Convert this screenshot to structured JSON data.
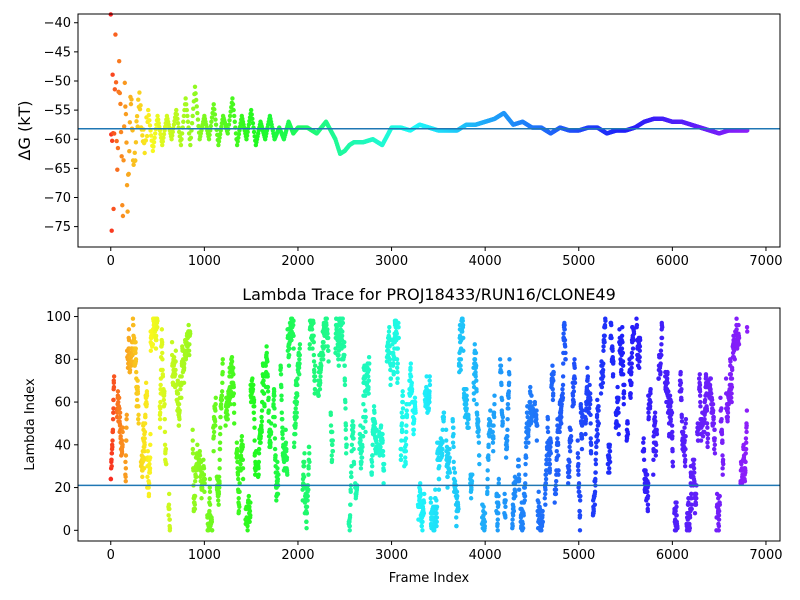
{
  "chart_data": [
    {
      "type": "scatter",
      "title": "",
      "xlabel": "",
      "ylabel": "ΔG (kT)",
      "xlim": [
        -350,
        7150
      ],
      "ylim": [
        -78.5,
        -38.5
      ],
      "xticks": [
        0,
        1000,
        2000,
        3000,
        4000,
        5000,
        6000,
        7000
      ],
      "yticks": [
        -75,
        -70,
        -65,
        -60,
        -55,
        -50,
        -45,
        -40
      ],
      "reference_line": -58.2,
      "reference_line_color": "#1f77b4",
      "colormap": "rainbow (red at early frames → violet at late frames)",
      "series": [
        {
          "x": [
            0,
            10,
            20,
            30,
            50,
            70,
            90,
            110,
            130,
            150,
            180,
            210,
            250,
            300,
            350,
            400,
            450,
            500,
            550,
            600,
            650,
            700,
            750,
            800,
            850,
            900,
            950,
            1000,
            1050,
            1100,
            1150,
            1200,
            1250,
            1300,
            1350,
            1400,
            1450,
            1500,
            1550,
            1600,
            1650,
            1700,
            1750,
            1800,
            1850,
            1900,
            1950,
            2000,
            2100,
            2200,
            2300,
            2400,
            2450,
            2500,
            2550,
            2600,
            2700,
            2800,
            2900,
            3000,
            3100,
            3200,
            3300,
            3400,
            3500,
            3600,
            3700,
            3800,
            3900,
            4000,
            4100,
            4200,
            4300,
            4400,
            4500,
            4600,
            4700,
            4800,
            4900,
            5000,
            5100,
            5200,
            5300,
            5400,
            5500,
            5600,
            5700,
            5800,
            5900,
            6000,
            6100,
            6200,
            6300,
            6400,
            6500,
            6600,
            6700,
            6800
          ],
          "values": [
            -39.5,
            -76.5,
            -50,
            -70,
            -44,
            -67,
            -45,
            -61,
            -73,
            -49,
            -72,
            -52,
            -66,
            -52,
            -61,
            -55,
            -62,
            -56,
            -61,
            -56,
            -60,
            -55,
            -61,
            -53,
            -61,
            -51,
            -60,
            -56,
            -60,
            -54,
            -61,
            -56,
            -59,
            -53,
            -61,
            -56,
            -60,
            -55,
            -61,
            -57,
            -60,
            -56,
            -60,
            -58,
            -60,
            -57,
            -59,
            -58,
            -58,
            -59,
            -57,
            -60,
            -62.5,
            -62,
            -61,
            -60.5,
            -60.5,
            -60,
            -61,
            -58,
            -58,
            -58.5,
            -57.5,
            -58,
            -58.5,
            -58.5,
            -58.5,
            -57.5,
            -57.5,
            -57,
            -56.5,
            -55.5,
            -57.5,
            -57,
            -58,
            -58,
            -59,
            -58,
            -58.5,
            -58.5,
            -58,
            -58,
            -59,
            -58.5,
            -58.5,
            -58,
            -57,
            -56.5,
            -56.5,
            -57,
            -57,
            -57.5,
            -58,
            -58.5,
            -59,
            -58.5,
            -58.5,
            -58.5
          ]
        }
      ]
    },
    {
      "type": "scatter",
      "title": "Lambda Trace for PROJ18433/RUN16/CLONE49",
      "xlabel": "Frame Index",
      "ylabel": "Lambda Index",
      "xlim": [
        -350,
        7150
      ],
      "ylim": [
        -5,
        104
      ],
      "xticks": [
        0,
        1000,
        2000,
        3000,
        4000,
        5000,
        6000,
        7000
      ],
      "yticks": [
        0,
        20,
        40,
        60,
        80,
        100
      ],
      "reference_line": 21,
      "reference_line_color": "#1f77b4",
      "colormap": "rainbow (red at early frames → violet at late frames)",
      "description_of_points": "dense vertical streaks of lambda indices 0-99 across frames 0-6800",
      "series": [
        {
          "x_range": [
            0,
            6800
          ],
          "y_range": [
            0,
            99
          ]
        }
      ]
    }
  ]
}
